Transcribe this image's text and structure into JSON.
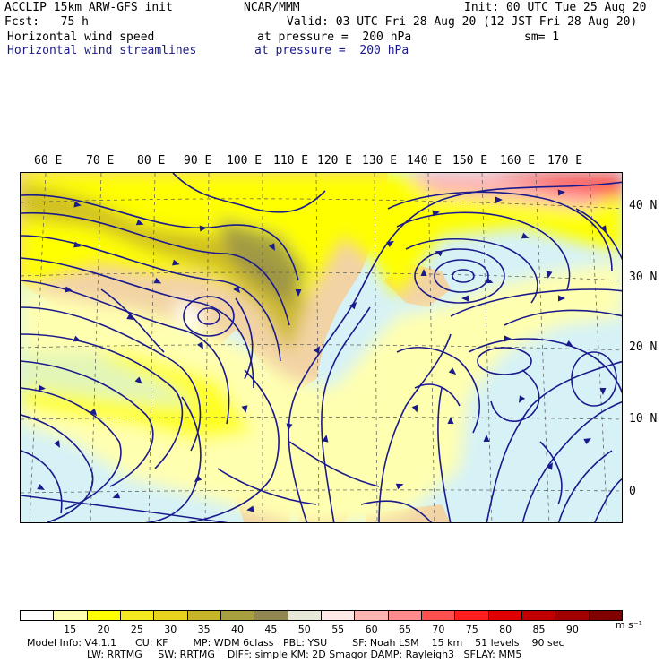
{
  "header": {
    "line1_left": "ACCLIP 15km ARW-GFS init",
    "line1_center": "NCAR/MMM",
    "line1_right": "Init: 00 UTC Tue 25 Aug 20",
    "line2_left": "Fcst:   75 h",
    "line2_right": "Valid: 03 UTC Fri 28 Aug 20 (12 JST Fri 28 Aug 20)",
    "line3_left": "Horizontal wind speed",
    "line3_center": "at pressure =  200 hPa",
    "line3_right": "sm= 1",
    "line4_left": "Horizontal wind streamlines",
    "line4_center": "at pressure =  200 hPa"
  },
  "map": {
    "lon_labels": [
      "60 E",
      "70 E",
      "80 E",
      "90 E",
      "100 E",
      "110 E",
      "120 E",
      "130 E",
      "140 E",
      "150 E",
      "160 E",
      "170 E"
    ],
    "lat_labels": [
      "40 N",
      "30 N",
      "20 N",
      "10 N",
      "0"
    ],
    "colors": {
      "ocean": "#d6f2f7",
      "land": "#f2d3a5",
      "streamline": "#1a1a8c"
    }
  },
  "colorbar": {
    "labels": [
      "15",
      "20",
      "25",
      "30",
      "35",
      "40",
      "45",
      "50",
      "55",
      "60",
      "65",
      "70",
      "75",
      "80",
      "85",
      "90"
    ],
    "unit": "m s⁻¹",
    "colors": [
      "#ffffff",
      "#ffffb0",
      "#ffff00",
      "#f5ea20",
      "#e8d21e",
      "#c8b428",
      "#a8a040",
      "#908850",
      "#e8e8d8",
      "#ffe8e8",
      "#ffb4b4",
      "#ff8c8c",
      "#ff5050",
      "#ff1e1e",
      "#e00000",
      "#c00000",
      "#a00000",
      "#800000"
    ]
  },
  "footer": {
    "line1": "Model Info: V4.1.1      CU: KF        MP: WDM 6class   PBL: YSU        SF: Noah LSM    15 km    51 levels    90 sec",
    "line2": "LW: RRTMG     SW: RRTMG    DIFF: simple KM: 2D Smagor DAMP: Rayleigh3   SFLAY: MM5"
  }
}
